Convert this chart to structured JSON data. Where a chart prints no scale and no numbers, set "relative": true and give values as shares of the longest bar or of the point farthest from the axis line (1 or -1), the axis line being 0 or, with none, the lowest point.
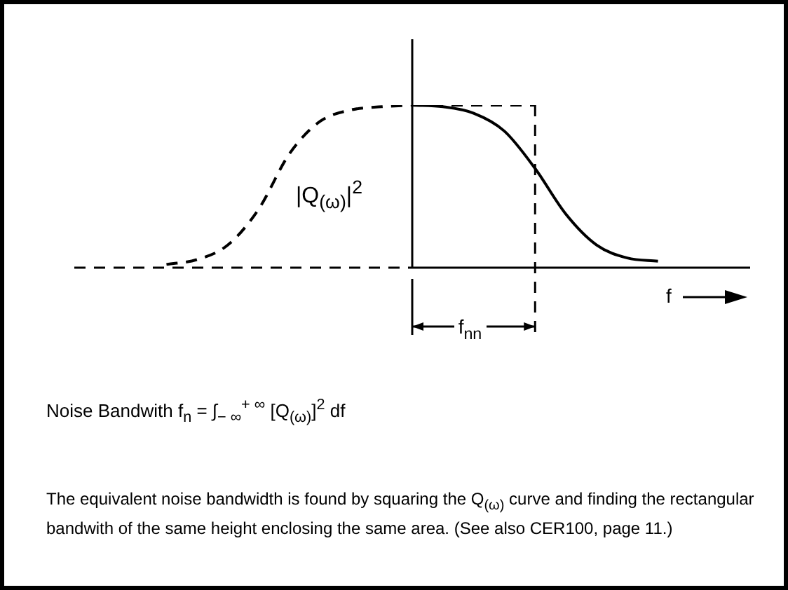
{
  "chart_data": {
    "type": "line",
    "relative": true,
    "xlabel": "f",
    "categories": [
      null,
      null,
      null,
      null,
      null,
      null,
      null,
      null,
      null,
      null,
      null,
      null,
      null,
      null,
      null,
      null,
      null,
      null,
      null,
      null,
      null,
      null,
      null
    ],
    "series": [
      {
        "color": "#000000",
        "line_style": "dashed",
        "values": [
          null,
          null,
          null,
          0.02,
          0.05,
          0.14,
          0.36,
          0.7,
          0.9,
          0.97,
          0.99,
          1,
          null,
          null,
          null,
          null,
          null,
          null,
          null,
          null,
          null,
          null,
          null
        ]
      },
      {
        "color": "#000000",
        "line_style": "solid",
        "values": [
          null,
          null,
          null,
          null,
          null,
          null,
          null,
          null,
          null,
          null,
          null,
          1,
          0.99,
          0.95,
          0.84,
          0.61,
          0.33,
          0.14,
          0.06,
          0.04,
          null,
          null,
          null
        ]
      },
      {
        "color": "#000000",
        "line_style": "dashed",
        "values": [
          null,
          null,
          null,
          null,
          null,
          null,
          null,
          null,
          null,
          null,
          null,
          1,
          1,
          1,
          1,
          1,
          null,
          null,
          null,
          null,
          null,
          null,
          null
        ]
      }
    ],
    "annotations": [
      "|Q$_{(ω)}$|$^{2}$",
      "f$_{nn}$",
      "Noise Bandwith f$_{n}$ = ∫$_{− ∞}$$^{+ ∞}$ [Q$_{(ω)}$]$^{2}$ df",
      "The equivalent noise bandwidth is found by squaring the Q$_{(ω)}$ curve and finding the rectangular bandwith of the same height enclosing the same area. (See also CER100, page 11.)"
    ],
    "legend": false,
    "marker": "none"
  }
}
